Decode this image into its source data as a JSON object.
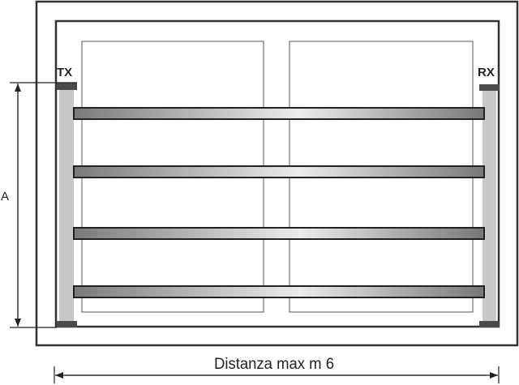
{
  "labels": {
    "transmitter": "TX",
    "receiver": "RX",
    "height_dimension": "A",
    "width_dimension": "Distanza max m 6"
  },
  "beams_count": 4,
  "colors": {
    "frame": "#333333",
    "post": "#c8c8c8",
    "cap": "#4a4a4a",
    "bar_dark": "#6e6e6e",
    "bar_light": "#e8e8e8"
  }
}
